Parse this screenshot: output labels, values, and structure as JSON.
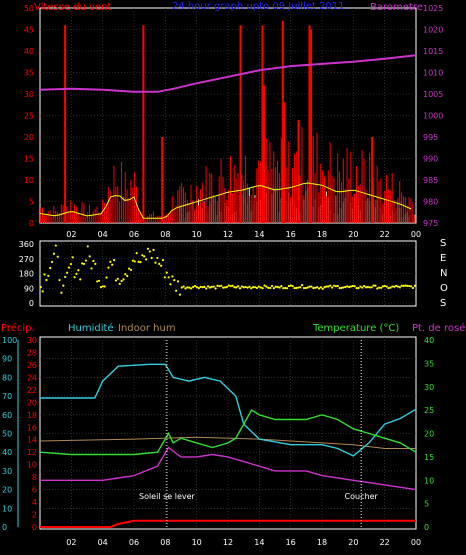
{
  "colors": {
    "background": "#000000",
    "frame": "#ffffff",
    "grid": "#4a4a4a",
    "wind": "#ff0000",
    "gust_fill": "#ffff00",
    "calm_fill": "#d8ffd8",
    "barometer": "#cc33cc",
    "direction": "#ffff00",
    "precip": "#ff0000",
    "humidity": "#33ccdd",
    "indoor_hum": "#b08850",
    "temperature": "#33dd33",
    "dew": "#cc33cc",
    "title": "#2020ff"
  },
  "chart_data": [
    {
      "type": "line",
      "title": "24 hour graph upto 09 Juillet 2011",
      "left_label": "Vitesse du vent",
      "right_label": "Barometre",
      "x_ticks": [
        "02",
        "04",
        "06",
        "08",
        "10",
        "12",
        "14",
        "16",
        "18",
        "20",
        "22",
        "00"
      ],
      "x_range_hours": [
        0,
        24
      ],
      "y_left_ticks": [
        "0",
        "5",
        "10",
        "15",
        "20",
        "25",
        "30",
        "35",
        "40",
        "45",
        "50"
      ],
      "y_left_range": [
        0,
        50
      ],
      "y_right_ticks": [
        "975",
        "980",
        "985",
        "990",
        "995",
        "1000",
        "1005",
        "1010",
        "1015",
        "1020",
        "1025"
      ],
      "y_right_range": [
        975,
        1025
      ],
      "grid": true,
      "series": [
        {
          "key": "barometer",
          "hours": [
            0,
            2,
            4,
            6,
            7.5,
            8.5,
            10,
            12,
            14,
            16,
            18,
            20,
            22,
            24
          ],
          "values": [
            1006,
            1006.2,
            1006,
            1005.5,
            1005.5,
            1006.2,
            1007.5,
            1009,
            1010.5,
            1011.5,
            1012,
            1012.5,
            1013.2,
            1014
          ]
        },
        {
          "key": "wind_spikes",
          "hours": [
            1.6,
            6.6,
            7.8,
            12.8,
            14.2,
            14.3,
            15.5,
            15.6,
            16.5,
            17.2,
            17.3,
            21.2
          ],
          "values": [
            46,
            46,
            20,
            46,
            46,
            32,
            47,
            28,
            24,
            46,
            45,
            20
          ]
        },
        {
          "key": "wind_envelope",
          "hours": [
            0,
            1,
            2,
            3,
            4,
            4.5,
            5,
            5.5,
            6,
            6.5,
            7,
            8,
            8.5,
            9,
            10,
            11,
            12,
            13,
            14,
            15,
            16,
            17,
            18,
            19,
            20,
            21,
            22,
            23,
            24
          ],
          "values": [
            4,
            3,
            5,
            3,
            4,
            11,
            12,
            9,
            11,
            2,
            2,
            2,
            6,
            7,
            9,
            11,
            13,
            14,
            16,
            14,
            15,
            17,
            16,
            13,
            14,
            12,
            10,
            8,
            5
          ]
        }
      ]
    },
    {
      "type": "scatter",
      "x_ticks": [
        "02",
        "04",
        "06",
        "08",
        "10",
        "12",
        "14",
        "16",
        "18",
        "20",
        "22",
        "00"
      ],
      "y_ticks": [
        "360",
        "270",
        "180",
        "90",
        "0"
      ],
      "y_range": [
        0,
        360
      ],
      "compass": [
        "S",
        "E",
        "N",
        "O",
        "S"
      ],
      "series": [
        {
          "key": "wind_direction",
          "hours": [
            0,
            0.5,
            1,
            1.5,
            2,
            2.5,
            3,
            3.5,
            4,
            4.5,
            5,
            5.5,
            6,
            6.5,
            7,
            7.5,
            8,
            8.5,
            9,
            10,
            11,
            12,
            13,
            14,
            15,
            16,
            17,
            18,
            19,
            20,
            21,
            22,
            23,
            24
          ],
          "values": [
            90,
            210,
            300,
            60,
            240,
            180,
            300,
            220,
            120,
            250,
            160,
            200,
            280,
            240,
            320,
            260,
            200,
            120,
            95,
            100,
            95,
            100,
            95,
            100,
            95,
            100,
            100,
            95,
            100,
            95,
            100,
            95,
            100,
            100
          ]
        }
      ]
    },
    {
      "type": "line",
      "labels": {
        "precip": "Précip.",
        "humidity": "Humidité",
        "indoor_hum": "Indoor hum",
        "temperature": "Temperature (°C)",
        "dew": "Pt. de rosée"
      },
      "annotations": [
        "Soleil se lever",
        "Coucher"
      ],
      "annotation_hours": [
        8.1,
        20.5
      ],
      "x_ticks": [
        "02",
        "04",
        "06",
        "08",
        "10",
        "12",
        "14",
        "16",
        "18",
        "20",
        "22",
        "00"
      ],
      "humidity_ticks": [
        "100",
        "90",
        "80",
        "70",
        "60",
        "50",
        "40",
        "30",
        "20",
        "10",
        "0"
      ],
      "humidity_range": [
        0,
        100
      ],
      "precip_ticks": [
        "30",
        "28",
        "26",
        "24",
        "22",
        "20",
        "18",
        "16",
        "14",
        "12",
        "10",
        "8",
        "6",
        "4",
        "2",
        "0"
      ],
      "precip_range": [
        0,
        30
      ],
      "temperature_ticks": [
        "0",
        "5",
        "10",
        "15",
        "20",
        "25",
        "30",
        "35",
        "40"
      ],
      "temperature_range": [
        0,
        40
      ],
      "series": [
        {
          "key": "humidity",
          "hours": [
            0,
            2,
            3.5,
            4,
            5,
            7,
            8,
            8.5,
            9.5,
            10.5,
            11.5,
            12.5,
            13,
            14,
            16,
            18,
            19,
            20,
            21,
            22,
            23,
            24
          ],
          "values": [
            69,
            69,
            69,
            78,
            86,
            87,
            87,
            80,
            78,
            80,
            78,
            70,
            55,
            47,
            44,
            44,
            42,
            38,
            45,
            55,
            58,
            63
          ]
        },
        {
          "key": "indoor_hum",
          "hours": [
            0,
            6,
            10,
            14,
            16,
            18,
            20,
            22,
            24
          ],
          "values": [
            46,
            47,
            48,
            47,
            46,
            45,
            44,
            42,
            42
          ]
        },
        {
          "key": "temperature",
          "hours": [
            0,
            2,
            3,
            4,
            6,
            7.5,
            8.2,
            8.5,
            9,
            10,
            11,
            12,
            12.5,
            13,
            13.5,
            14,
            15,
            16,
            17,
            18,
            19,
            20,
            21,
            22,
            23,
            24
          ],
          "values": [
            16,
            15.5,
            15.5,
            15.5,
            15.5,
            16,
            20,
            18,
            19,
            18,
            17,
            18,
            19,
            22,
            25,
            24,
            23,
            23,
            23,
            24,
            23,
            21,
            20,
            19,
            18,
            16
          ]
        },
        {
          "key": "dew",
          "hours": [
            0,
            2,
            4,
            6,
            7.5,
            8.2,
            9,
            10,
            11,
            12,
            13,
            14,
            15,
            16,
            17,
            18,
            19,
            20,
            21,
            22,
            23,
            24
          ],
          "values": [
            10,
            10,
            10,
            11,
            13,
            17,
            15,
            15,
            15.5,
            15,
            14,
            13,
            12,
            12,
            12,
            11,
            10.5,
            10,
            9.5,
            9,
            8.5,
            8
          ]
        },
        {
          "key": "precip",
          "hours": [
            0,
            4.5,
            5,
            6,
            8,
            24
          ],
          "values": [
            0,
            0,
            0.5,
            1,
            1,
            1
          ]
        }
      ]
    }
  ]
}
